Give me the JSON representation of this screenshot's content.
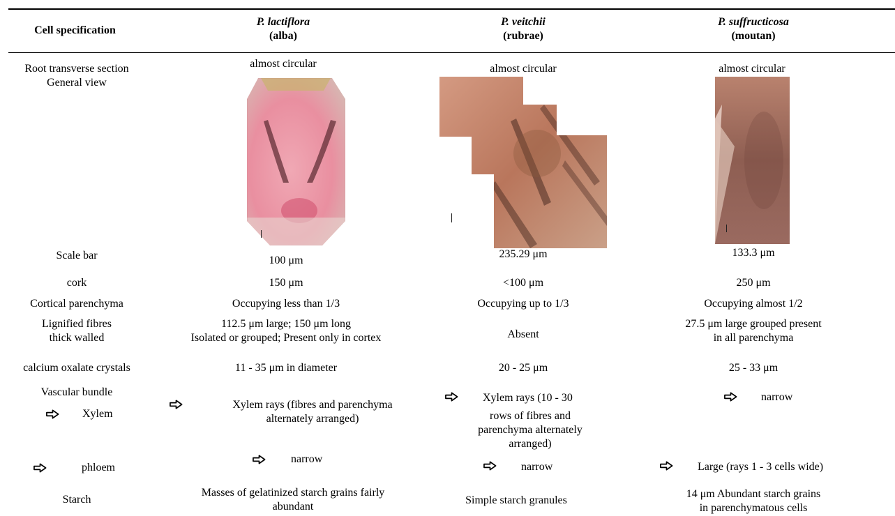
{
  "header": {
    "col0": "Cell specification",
    "col1_species": "P. lactiflora",
    "col1_sub": "(alba)",
    "col2_species": "P. veitchii",
    "col2_sub": "(rubrae)",
    "col3_species": "P. suffructicosa",
    "col3_sub": "(moutan)"
  },
  "rows": {
    "section_label_1": "Root transverse section",
    "section_label_2": "General view",
    "shape_1": "almost circular",
    "shape_2": "almost circular",
    "shape_3": "almost circular",
    "scale_label": "Scale bar",
    "scale_1": "100 μm",
    "scale_2": "235.29 μm",
    "scale_3": "133.3 μm",
    "cork_label": "cork",
    "cork_1": "150 μm",
    "cork_2": "<100 μm",
    "cork_3": "250 μm",
    "cortical_label": "Cortical parenchyma",
    "cortical_1": "Occupying less than 1/3",
    "cortical_2": "Occupying up to 1/3",
    "cortical_3": "Occupying almost 1/2",
    "fibres_label_1": "Lignified fibres",
    "fibres_label_2": "thick walled",
    "fibres_1a": "112.5 μm large; 150 μm long",
    "fibres_1b": "Isolated or grouped; Present only in cortex",
    "fibres_2": "Absent",
    "fibres_3a": "27.5 μm large grouped present",
    "fibres_3b": "in all parenchyma",
    "calcium_label": "calcium oxalate crystals",
    "calcium_1": "11 - 35 μm in diameter",
    "calcium_2": "20 - 25 μm",
    "calcium_3": "25 - 33 μm",
    "vascular_label": "Vascular bundle",
    "xylem_label": "Xylem",
    "xylem_1a": "Xylem rays (fibres and parenchyma",
    "xylem_1b": "alternately arranged)",
    "xylem_2a": "Xylem rays (10 - 30",
    "xylem_2b": "rows of fibres and",
    "xylem_2c": "parenchyma alternately",
    "xylem_2d": "arranged)",
    "xylem_3": "narrow",
    "phloem_label": "phloem",
    "phloem_1": "narrow",
    "phloem_2": "narrow",
    "phloem_3": "Large (rays 1 - 3 cells wide)",
    "starch_label": "Starch",
    "starch_1a": "Masses of gelatinized starch grains fairly",
    "starch_1b": "abundant",
    "starch_2": "Simple starch granules",
    "starch_3a": "14 μm Abundant starch grains",
    "starch_3b": "in parenchymatous cells"
  },
  "icons": {
    "arrow": "right-arrow-outline-icon"
  },
  "colors": {
    "rule": "#000000",
    "text": "#000000"
  }
}
